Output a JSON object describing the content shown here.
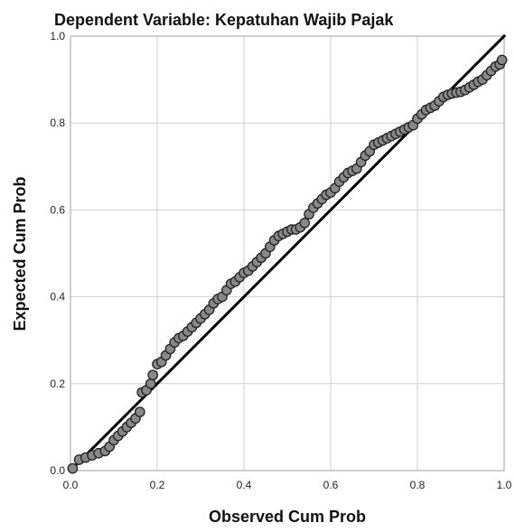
{
  "chart_data": {
    "type": "scatter",
    "title": "Dependent Variable: Kepatuhan Wajib Pajak",
    "xlabel": "Observed Cum Prob",
    "ylabel": "Expected Cum Prob",
    "xlim": [
      0,
      1
    ],
    "ylim": [
      0,
      1
    ],
    "xticks": [
      "0.0",
      "0.2",
      "0.4",
      "0.6",
      "0.8",
      "1.0"
    ],
    "yticks": [
      "0.0",
      "0.2",
      "0.4",
      "0.6",
      "0.8",
      "1.0"
    ],
    "grid": true,
    "reference_line": {
      "from": [
        0,
        0
      ],
      "to": [
        1,
        1
      ]
    },
    "marker_color": "#888888",
    "marker_edge_color": "#222222",
    "series": [
      {
        "points": [
          [
            0.005,
            0.005
          ],
          [
            0.02,
            0.025
          ],
          [
            0.035,
            0.03
          ],
          [
            0.05,
            0.035
          ],
          [
            0.065,
            0.04
          ],
          [
            0.08,
            0.045
          ],
          [
            0.09,
            0.055
          ],
          [
            0.1,
            0.07
          ],
          [
            0.11,
            0.08
          ],
          [
            0.12,
            0.09
          ],
          [
            0.13,
            0.1
          ],
          [
            0.14,
            0.11
          ],
          [
            0.15,
            0.12
          ],
          [
            0.16,
            0.135
          ],
          [
            0.165,
            0.18
          ],
          [
            0.175,
            0.185
          ],
          [
            0.185,
            0.2
          ],
          [
            0.19,
            0.22
          ],
          [
            0.2,
            0.245
          ],
          [
            0.21,
            0.25
          ],
          [
            0.22,
            0.265
          ],
          [
            0.23,
            0.28
          ],
          [
            0.24,
            0.295
          ],
          [
            0.25,
            0.305
          ],
          [
            0.26,
            0.31
          ],
          [
            0.27,
            0.32
          ],
          [
            0.28,
            0.33
          ],
          [
            0.29,
            0.34
          ],
          [
            0.3,
            0.35
          ],
          [
            0.31,
            0.36
          ],
          [
            0.32,
            0.37
          ],
          [
            0.33,
            0.385
          ],
          [
            0.34,
            0.395
          ],
          [
            0.35,
            0.4
          ],
          [
            0.36,
            0.415
          ],
          [
            0.37,
            0.43
          ],
          [
            0.38,
            0.435
          ],
          [
            0.39,
            0.445
          ],
          [
            0.4,
            0.455
          ],
          [
            0.41,
            0.46
          ],
          [
            0.42,
            0.47
          ],
          [
            0.43,
            0.48
          ],
          [
            0.44,
            0.49
          ],
          [
            0.45,
            0.5
          ],
          [
            0.46,
            0.515
          ],
          [
            0.47,
            0.53
          ],
          [
            0.48,
            0.54
          ],
          [
            0.49,
            0.545
          ],
          [
            0.5,
            0.55
          ],
          [
            0.51,
            0.555
          ],
          [
            0.52,
            0.555
          ],
          [
            0.53,
            0.56
          ],
          [
            0.54,
            0.57
          ],
          [
            0.55,
            0.59
          ],
          [
            0.56,
            0.605
          ],
          [
            0.57,
            0.615
          ],
          [
            0.58,
            0.625
          ],
          [
            0.59,
            0.635
          ],
          [
            0.6,
            0.64
          ],
          [
            0.61,
            0.65
          ],
          [
            0.62,
            0.665
          ],
          [
            0.63,
            0.675
          ],
          [
            0.64,
            0.685
          ],
          [
            0.65,
            0.69
          ],
          [
            0.66,
            0.695
          ],
          [
            0.67,
            0.71
          ],
          [
            0.68,
            0.725
          ],
          [
            0.69,
            0.735
          ],
          [
            0.7,
            0.75
          ],
          [
            0.71,
            0.755
          ],
          [
            0.72,
            0.76
          ],
          [
            0.73,
            0.765
          ],
          [
            0.74,
            0.77
          ],
          [
            0.75,
            0.775
          ],
          [
            0.76,
            0.78
          ],
          [
            0.77,
            0.785
          ],
          [
            0.78,
            0.79
          ],
          [
            0.79,
            0.795
          ],
          [
            0.8,
            0.81
          ],
          [
            0.81,
            0.82
          ],
          [
            0.82,
            0.83
          ],
          [
            0.83,
            0.835
          ],
          [
            0.84,
            0.84
          ],
          [
            0.85,
            0.85
          ],
          [
            0.86,
            0.86
          ],
          [
            0.87,
            0.865
          ],
          [
            0.88,
            0.868
          ],
          [
            0.89,
            0.87
          ],
          [
            0.9,
            0.872
          ],
          [
            0.91,
            0.876
          ],
          [
            0.92,
            0.882
          ],
          [
            0.93,
            0.888
          ],
          [
            0.94,
            0.895
          ],
          [
            0.95,
            0.9
          ],
          [
            0.96,
            0.91
          ],
          [
            0.97,
            0.92
          ],
          [
            0.98,
            0.93
          ],
          [
            0.99,
            0.935
          ],
          [
            0.995,
            0.945
          ]
        ]
      }
    ]
  }
}
